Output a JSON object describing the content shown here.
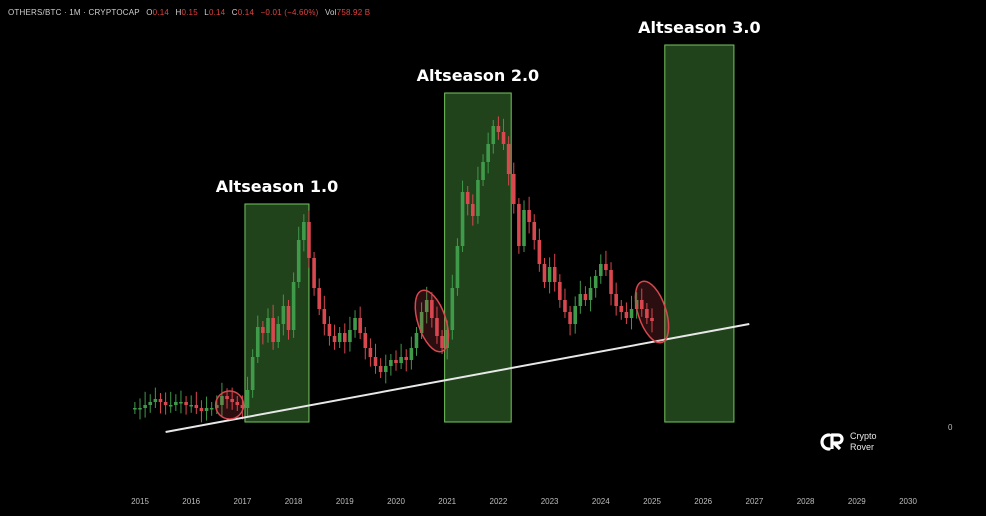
{
  "header": {
    "symbol": "OTHERS/BTC · 1M · CRYPTOCAP",
    "open_key": "O",
    "open": "0.14",
    "high_key": "H",
    "high": "0.15",
    "low_key": "L",
    "low": "0.14",
    "close_key": "C",
    "close": "0.14",
    "change": "−0.01 (−4.60%)",
    "vol_key": "Vol",
    "vol": "758.92 B"
  },
  "brand": {
    "line1": "Crypto",
    "line2": "Rover"
  },
  "side_label": "0",
  "colors": {
    "up": "#3f9a4a",
    "down": "#d9474f",
    "zone_fill": "#2c5a25",
    "zone_stroke": "#74c75f",
    "trendline": "#e8e8e8",
    "circle": "#d9474f"
  },
  "chart_data": {
    "type": "candlestick",
    "title": "",
    "x_ticks": [
      "2015",
      "2016",
      "2017",
      "2018",
      "2019",
      "2020",
      "2021",
      "2022",
      "2023",
      "2024",
      "2025",
      "2026",
      "2027",
      "2028",
      "2029",
      "2030"
    ],
    "xlim": [
      2014.6,
      2030.3
    ],
    "ylim": [
      0.0,
      1.0
    ],
    "y_unit_note": "",
    "zones": [
      {
        "label": "Altseason 1.0",
        "x0": 2017.05,
        "x1": 2018.3,
        "top": 0.76
      },
      {
        "label": "Altseason 2.0",
        "x0": 2020.95,
        "x1": 2022.25,
        "top": 1.13
      },
      {
        "label": "Altseason 3.0",
        "x0": 2025.25,
        "x1": 2026.6,
        "top": 1.29
      }
    ],
    "trendline": {
      "x0": 2015.5,
      "y0": 0.0,
      "x1": 2026.9,
      "y1": 0.36
    },
    "highlight_circles": [
      {
        "x": 2016.75,
        "y": 0.09
      },
      {
        "x": 2020.7,
        "y": 0.37
      },
      {
        "x": 2025.0,
        "y": 0.4
      }
    ],
    "series": [
      {
        "t": 2014.9,
        "c": 0.08
      },
      {
        "t": 2015.0,
        "c": 0.08
      },
      {
        "t": 2015.1,
        "c": 0.09
      },
      {
        "t": 2015.2,
        "c": 0.1
      },
      {
        "t": 2015.3,
        "c": 0.11
      },
      {
        "t": 2015.4,
        "c": 0.1
      },
      {
        "t": 2015.5,
        "c": 0.09
      },
      {
        "t": 2015.6,
        "c": 0.09
      },
      {
        "t": 2015.7,
        "c": 0.1
      },
      {
        "t": 2015.8,
        "c": 0.1
      },
      {
        "t": 2015.9,
        "c": 0.09
      },
      {
        "t": 2016.0,
        "c": 0.09
      },
      {
        "t": 2016.1,
        "c": 0.08
      },
      {
        "t": 2016.2,
        "c": 0.07
      },
      {
        "t": 2016.3,
        "c": 0.08
      },
      {
        "t": 2016.4,
        "c": 0.08
      },
      {
        "t": 2016.5,
        "c": 0.09
      },
      {
        "t": 2016.6,
        "c": 0.12
      },
      {
        "t": 2016.7,
        "c": 0.11
      },
      {
        "t": 2016.8,
        "c": 0.1
      },
      {
        "t": 2016.9,
        "c": 0.09
      },
      {
        "t": 2017.0,
        "c": 0.08
      },
      {
        "t": 2017.1,
        "c": 0.14
      },
      {
        "t": 2017.2,
        "c": 0.25
      },
      {
        "t": 2017.3,
        "c": 0.35
      },
      {
        "t": 2017.4,
        "c": 0.33
      },
      {
        "t": 2017.5,
        "c": 0.38
      },
      {
        "t": 2017.6,
        "c": 0.3
      },
      {
        "t": 2017.7,
        "c": 0.36
      },
      {
        "t": 2017.8,
        "c": 0.42
      },
      {
        "t": 2017.9,
        "c": 0.34
      },
      {
        "t": 2018.0,
        "c": 0.5
      },
      {
        "t": 2018.1,
        "c": 0.64
      },
      {
        "t": 2018.2,
        "c": 0.7
      },
      {
        "t": 2018.3,
        "c": 0.58
      },
      {
        "t": 2018.4,
        "c": 0.48
      },
      {
        "t": 2018.5,
        "c": 0.41
      },
      {
        "t": 2018.6,
        "c": 0.36
      },
      {
        "t": 2018.7,
        "c": 0.32
      },
      {
        "t": 2018.8,
        "c": 0.3
      },
      {
        "t": 2018.9,
        "c": 0.33
      },
      {
        "t": 2019.0,
        "c": 0.3
      },
      {
        "t": 2019.1,
        "c": 0.34
      },
      {
        "t": 2019.2,
        "c": 0.38
      },
      {
        "t": 2019.3,
        "c": 0.33
      },
      {
        "t": 2019.4,
        "c": 0.28
      },
      {
        "t": 2019.5,
        "c": 0.25
      },
      {
        "t": 2019.6,
        "c": 0.22
      },
      {
        "t": 2019.7,
        "c": 0.2
      },
      {
        "t": 2019.8,
        "c": 0.22
      },
      {
        "t": 2019.9,
        "c": 0.24
      },
      {
        "t": 2020.0,
        "c": 0.23
      },
      {
        "t": 2020.1,
        "c": 0.25
      },
      {
        "t": 2020.2,
        "c": 0.24
      },
      {
        "t": 2020.3,
        "c": 0.28
      },
      {
        "t": 2020.4,
        "c": 0.33
      },
      {
        "t": 2020.5,
        "c": 0.4
      },
      {
        "t": 2020.6,
        "c": 0.44
      },
      {
        "t": 2020.7,
        "c": 0.38
      },
      {
        "t": 2020.8,
        "c": 0.32
      },
      {
        "t": 2020.9,
        "c": 0.28
      },
      {
        "t": 2021.0,
        "c": 0.34
      },
      {
        "t": 2021.1,
        "c": 0.48
      },
      {
        "t": 2021.2,
        "c": 0.62
      },
      {
        "t": 2021.3,
        "c": 0.8
      },
      {
        "t": 2021.4,
        "c": 0.76
      },
      {
        "t": 2021.5,
        "c": 0.72
      },
      {
        "t": 2021.6,
        "c": 0.84
      },
      {
        "t": 2021.7,
        "c": 0.9
      },
      {
        "t": 2021.8,
        "c": 0.96
      },
      {
        "t": 2021.9,
        "c": 1.02
      },
      {
        "t": 2022.0,
        "c": 1.0
      },
      {
        "t": 2022.1,
        "c": 0.96
      },
      {
        "t": 2022.2,
        "c": 0.86
      },
      {
        "t": 2022.3,
        "c": 0.76
      },
      {
        "t": 2022.4,
        "c": 0.62
      },
      {
        "t": 2022.5,
        "c": 0.74
      },
      {
        "t": 2022.6,
        "c": 0.7
      },
      {
        "t": 2022.7,
        "c": 0.64
      },
      {
        "t": 2022.8,
        "c": 0.56
      },
      {
        "t": 2022.9,
        "c": 0.5
      },
      {
        "t": 2023.0,
        "c": 0.55
      },
      {
        "t": 2023.1,
        "c": 0.5
      },
      {
        "t": 2023.2,
        "c": 0.44
      },
      {
        "t": 2023.3,
        "c": 0.4
      },
      {
        "t": 2023.4,
        "c": 0.36
      },
      {
        "t": 2023.5,
        "c": 0.42
      },
      {
        "t": 2023.6,
        "c": 0.46
      },
      {
        "t": 2023.7,
        "c": 0.44
      },
      {
        "t": 2023.8,
        "c": 0.48
      },
      {
        "t": 2023.9,
        "c": 0.52
      },
      {
        "t": 2024.0,
        "c": 0.56
      },
      {
        "t": 2024.1,
        "c": 0.54
      },
      {
        "t": 2024.2,
        "c": 0.46
      },
      {
        "t": 2024.3,
        "c": 0.42
      },
      {
        "t": 2024.4,
        "c": 0.4
      },
      {
        "t": 2024.5,
        "c": 0.38
      },
      {
        "t": 2024.6,
        "c": 0.41
      },
      {
        "t": 2024.7,
        "c": 0.44
      },
      {
        "t": 2024.8,
        "c": 0.41
      },
      {
        "t": 2024.9,
        "c": 0.38
      },
      {
        "t": 2025.0,
        "c": 0.37
      }
    ]
  }
}
